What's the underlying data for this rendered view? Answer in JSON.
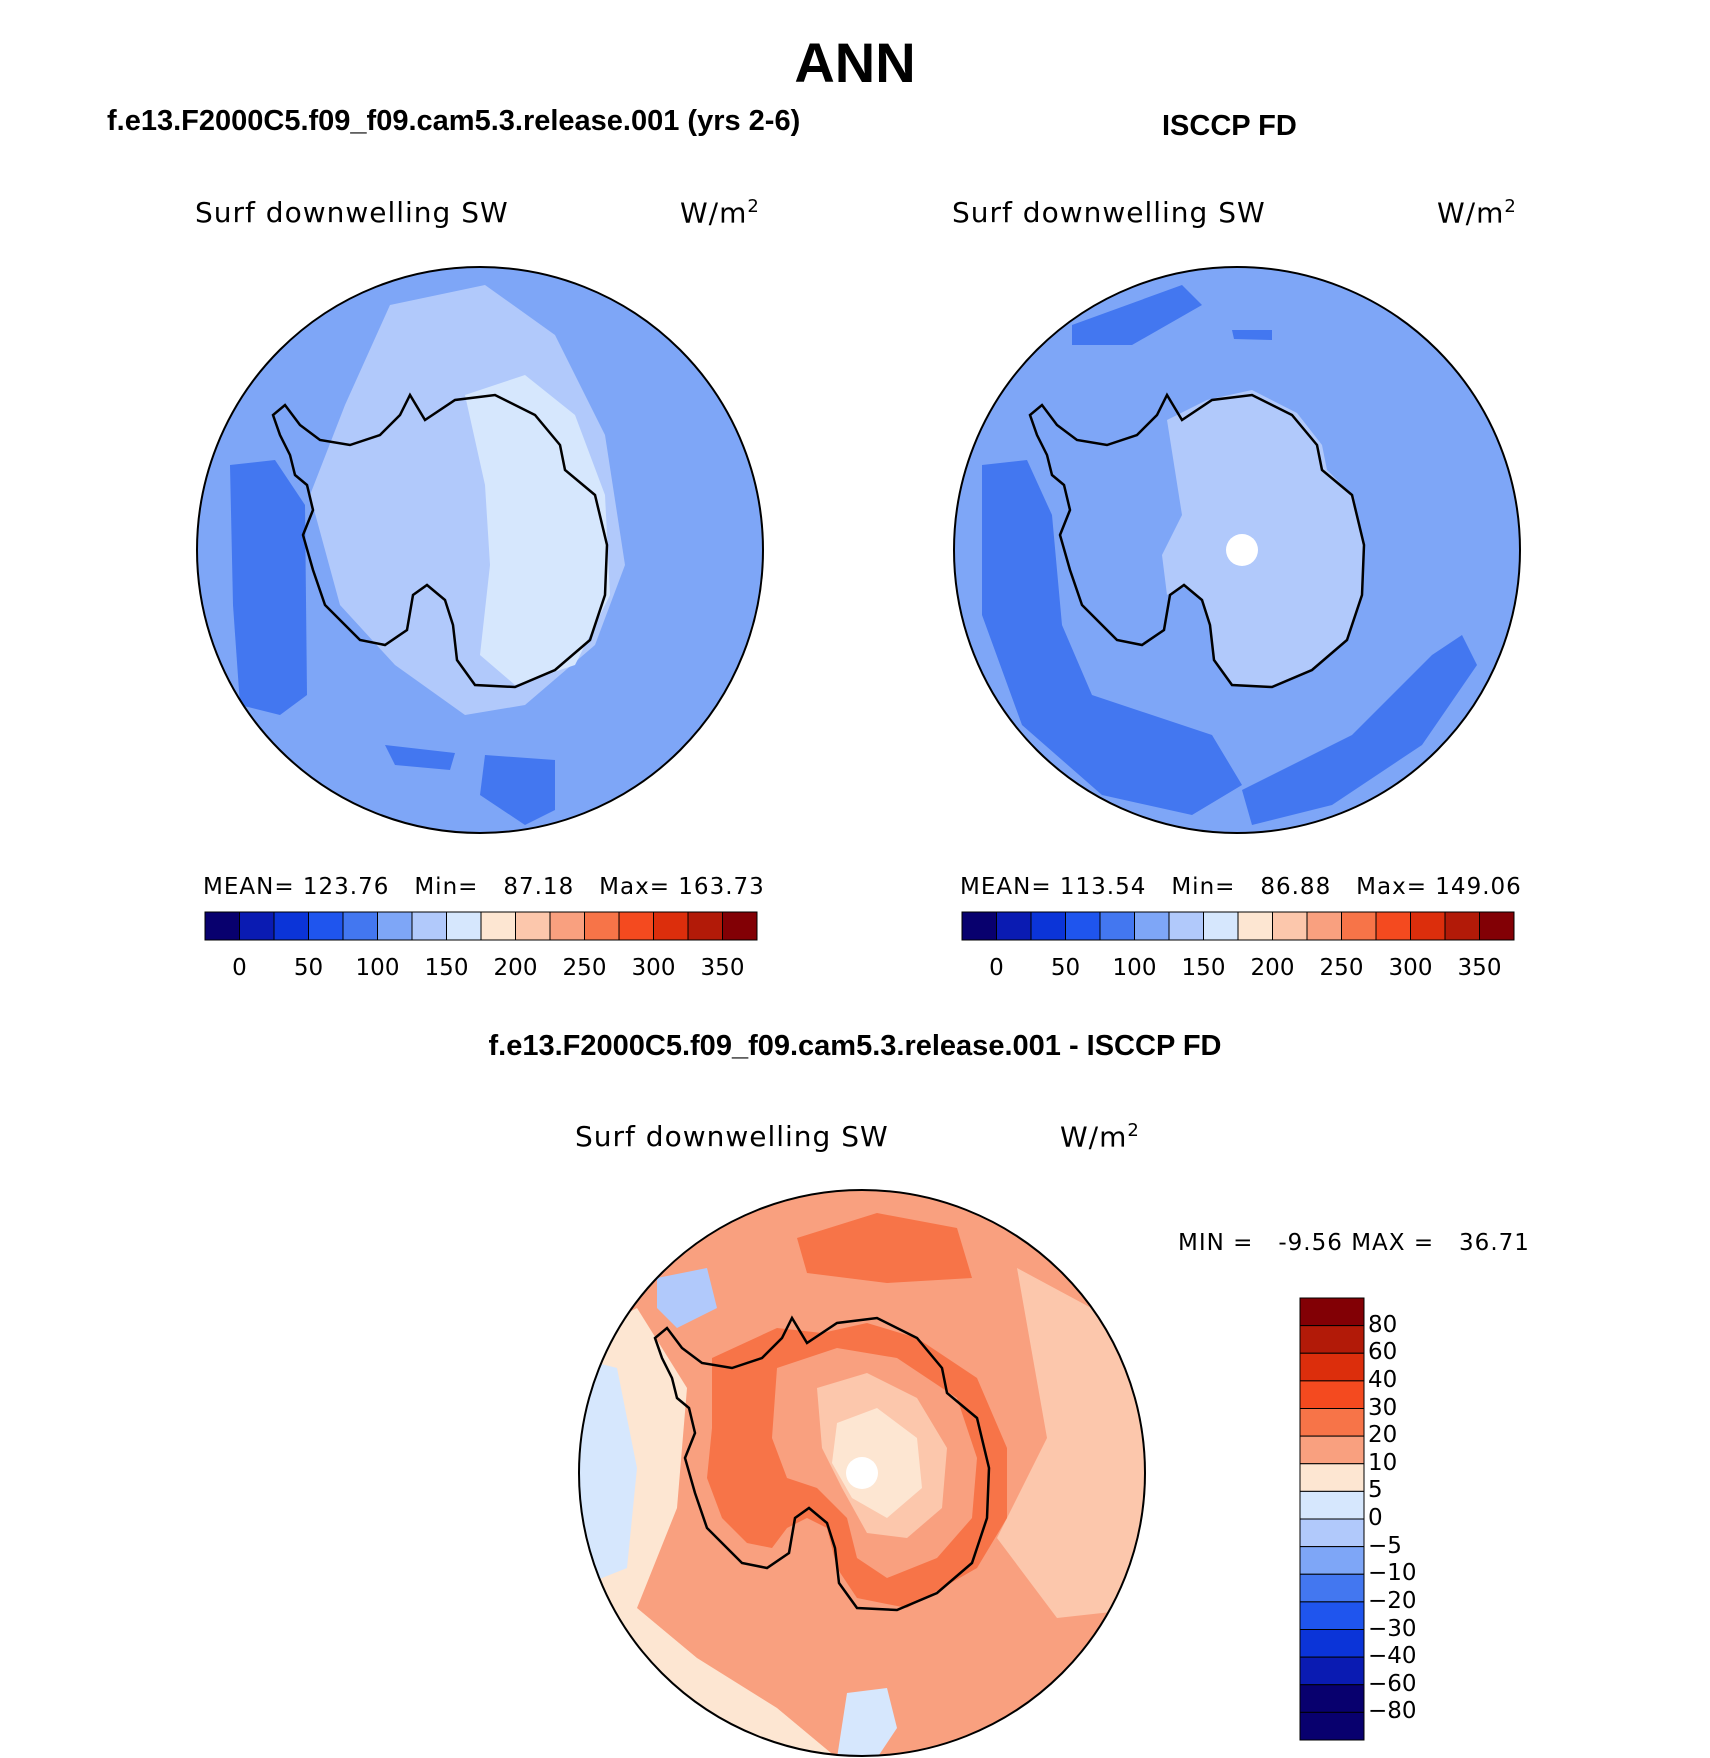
{
  "figure": {
    "title": "ANN"
  },
  "palettes": {
    "absolute": [
      "#08006e",
      "#0a1bb2",
      "#0b34d8",
      "#1f55ee",
      "#4377f0",
      "#7ea6f7",
      "#b1c9fb",
      "#d6e7fd",
      "#fde6d2",
      "#fcc7ac",
      "#f9a07f",
      "#f77448",
      "#f44a1f",
      "#dc2e0c",
      "#b21a08",
      "#820005"
    ],
    "difference_top_to_bottom": [
      "#820005",
      "#b21a08",
      "#dc2e0c",
      "#f44a1f",
      "#f77448",
      "#f9a07f",
      "#fde6d2",
      "#d6e7fd",
      "#b1c9fb",
      "#7ea6f7",
      "#4377f0",
      "#1f55ee",
      "#0b34d8",
      "#0a1bb2",
      "#08006e"
    ]
  },
  "panels": [
    {
      "subtitle": "f.e13.F2000C5.f09_f09.cam5.3.release.001 (yrs 2-6)",
      "variable": "Surf downwelling SW",
      "units_base": "W/m",
      "units_exp": "2",
      "stats": {
        "mean_label": "MEAN=",
        "mean": "123.76",
        "min_label": "Min=",
        "min": "87.18",
        "max_label": "Max=",
        "max": "163.73"
      },
      "ticks": [
        "0",
        "50",
        "100",
        "150",
        "200",
        "250",
        "300",
        "350"
      ]
    },
    {
      "subtitle": "ISCCP FD",
      "variable": "Surf downwelling SW",
      "units_base": "W/m",
      "units_exp": "2",
      "stats": {
        "mean_label": "MEAN=",
        "mean": "113.54",
        "min_label": "Min=",
        "min": "86.88",
        "max_label": "Max=",
        "max": "149.06"
      },
      "ticks": [
        "0",
        "50",
        "100",
        "150",
        "200",
        "250",
        "300",
        "350"
      ]
    }
  ],
  "difference": {
    "subtitle": "f.e13.F2000C5.f09_f09.cam5.3.release.001 - ISCCP FD",
    "variable": "Surf downwelling SW",
    "units_base": "W/m",
    "units_exp": "2",
    "min_label": "MIN =",
    "min": "-9.56",
    "max_label": "MAX =",
    "max": "36.71",
    "ticks": [
      "80",
      "60",
      "40",
      "30",
      "20",
      "10",
      "5",
      "0",
      "−5",
      "−10",
      "−20",
      "−30",
      "−40",
      "−60",
      "−80"
    ]
  }
}
